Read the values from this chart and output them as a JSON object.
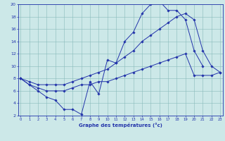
{
  "bg_color": "#cce8e8",
  "line_color": "#2233aa",
  "xlim": [
    -0.5,
    23.5
  ],
  "ylim": [
    2,
    20
  ],
  "xticks": [
    0,
    1,
    2,
    3,
    4,
    5,
    6,
    7,
    8,
    9,
    10,
    11,
    12,
    13,
    14,
    15,
    16,
    17,
    18,
    19,
    20,
    21,
    22,
    23
  ],
  "yticks": [
    2,
    4,
    6,
    8,
    10,
    12,
    14,
    16,
    18,
    20
  ],
  "xlabel": "Graphe des températures (°c)",
  "line1_x": [
    0,
    1,
    2,
    3,
    4,
    5,
    6,
    7,
    8,
    9,
    10,
    11,
    12,
    13,
    14,
    15,
    16,
    17,
    18,
    19,
    20,
    21
  ],
  "line1_y": [
    8,
    7,
    6,
    5,
    4.5,
    3,
    3,
    2.2,
    7.5,
    5.5,
    11,
    10.5,
    14,
    15.5,
    18.5,
    20,
    20.5,
    19,
    19,
    17.5,
    12.5,
    10
  ],
  "line2_x": [
    0,
    1,
    2,
    3,
    4,
    5,
    6,
    7,
    8,
    9,
    10,
    11,
    12,
    13,
    14,
    15,
    16,
    17,
    18,
    19,
    20,
    21,
    22,
    23
  ],
  "line2_y": [
    8,
    7.5,
    7,
    7,
    7,
    7,
    7.5,
    8,
    8.5,
    9,
    9.5,
    10.5,
    11.5,
    12.5,
    14,
    15,
    16,
    17,
    18,
    18.5,
    17.5,
    12.5,
    10,
    9
  ],
  "line3_x": [
    0,
    1,
    2,
    3,
    4,
    5,
    6,
    7,
    8,
    9,
    10,
    11,
    12,
    13,
    14,
    15,
    16,
    17,
    18,
    19,
    20,
    21,
    22,
    23
  ],
  "line3_y": [
    8,
    7,
    6.5,
    6,
    6,
    6,
    6.5,
    7,
    7,
    7.5,
    7.5,
    8,
    8.5,
    9,
    9.5,
    10,
    10.5,
    11,
    11.5,
    12,
    8.5,
    8.5,
    8.5,
    9
  ]
}
